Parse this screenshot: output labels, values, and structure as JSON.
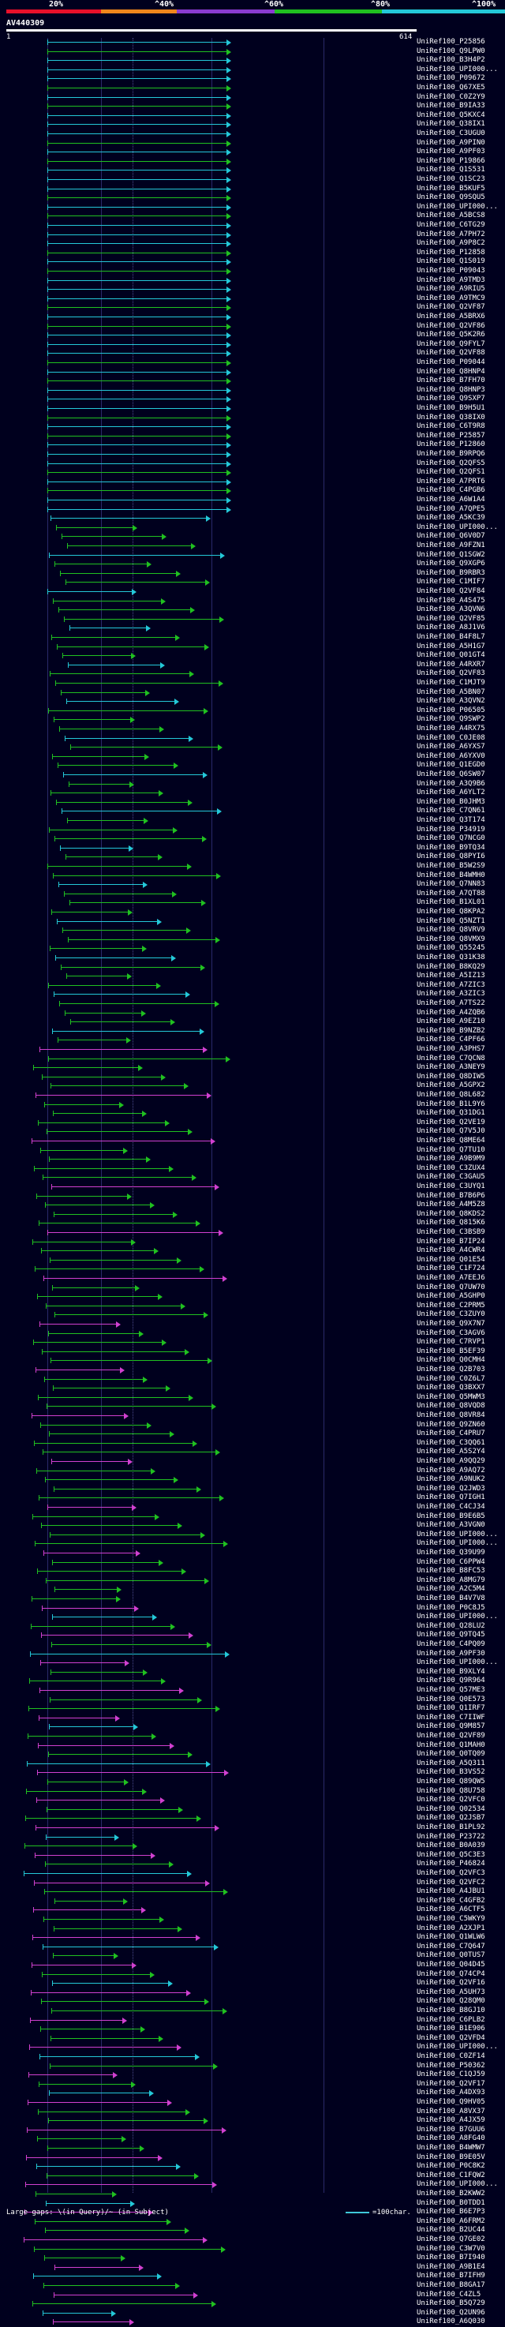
{
  "header": {
    "percent_labels": [
      "20%",
      "^40%",
      "^60%",
      "^80%",
      "^100%"
    ],
    "colors": [
      "#e8102a",
      "#f0861c",
      "#8a3cd0",
      "#20c020",
      "#24c8d8"
    ]
  },
  "query": {
    "id": "AV440309",
    "ruler_start": "1",
    "ruler_end": "614"
  },
  "hits": [
    "UniRef100_P25856",
    "UniRef100_Q9LPW0",
    "UniRef100_B3H4P2",
    "UniRef100_UPI000...",
    "UniRef100_P09672",
    "UniRef100_Q67XE5",
    "UniRef100_C0Z2Y9",
    "UniRef100_B9IA33",
    "UniRef100_Q5KXC4",
    "UniRef100_Q38IX1",
    "UniRef100_C3UGU0",
    "UniRef100_A9PIN0",
    "UniRef100_A9PF03",
    "UniRef100_P19866",
    "UniRef100_Q1S531",
    "UniRef100_Q1SC23",
    "UniRef100_B5KUF5",
    "UniRef100_Q9SQU5",
    "UniRef100_UPI000...",
    "UniRef100_A5BCS8",
    "UniRef100_C6TG29",
    "UniRef100_A7PH72",
    "UniRef100_A9P8C2",
    "UniRef100_P12858",
    "UniRef100_Q1S019",
    "UniRef100_P09043",
    "UniRef100_A9TMD3",
    "UniRef100_A9RIU5",
    "UniRef100_A9TMC9",
    "UniRef100_Q2VF87",
    "UniRef100_A5BRX6",
    "UniRef100_Q2VF86",
    "UniRef100_Q5K2R6",
    "UniRef100_Q9FYL7",
    "UniRef100_Q2VF88",
    "UniRef100_P09044",
    "UniRef100_Q8HNP4",
    "UniRef100_B7FH70",
    "UniRef100_Q8HNP3",
    "UniRef100_Q9SXP7",
    "UniRef100_B9H5U1",
    "UniRef100_Q38IX0",
    "UniRef100_C6T9R8",
    "UniRef100_P25857",
    "UniRef100_P12860",
    "UniRef100_B9RPQ6",
    "UniRef100_Q2QFS5",
    "UniRef100_Q2QFS1",
    "UniRef100_A7PRT6",
    "UniRef100_C4PGB6",
    "UniRef100_A6W1A4",
    "UniRef100_A7QPE5",
    "UniRef100_A5KC39",
    "UniRef100_UPI000...",
    "UniRef100_Q6V0D7",
    "UniRef100_A9FZN1",
    "UniRef100_Q1SGW2",
    "UniRef100_Q9XGP6",
    "UniRef100_B9RBR3",
    "UniRef100_C1MIF7",
    "UniRef100_Q2VF84",
    "UniRef100_A4S475",
    "UniRef100_A3QVN6",
    "UniRef100_Q2VF85",
    "UniRef100_A8J1V6",
    "UniRef100_B4F8L7",
    "UniRef100_A5H1G7",
    "UniRef100_Q01GT4",
    "UniRef100_A4RXR7",
    "UniRef100_Q2VF83",
    "UniRef100_C1MJT9",
    "UniRef100_A5BN07",
    "UniRef100_A3QVN2",
    "UniRef100_P06505",
    "UniRef100_Q9SWP2",
    "UniRef100_A4RX75",
    "UniRef100_C0JE08",
    "UniRef100_A6YXS7",
    "UniRef100_A6YXV0",
    "UniRef100_Q1EGD0",
    "UniRef100_Q6SW07",
    "UniRef100_A3Q9B6",
    "UniRef100_A6YLT2",
    "UniRef100_B0JHM3",
    "UniRef100_C7QN61",
    "UniRef100_Q3T174",
    "UniRef100_P34919",
    "UniRef100_Q7NCG0",
    "UniRef100_B9TQ34",
    "UniRef100_Q8PYI6",
    "UniRef100_B5W2S9",
    "UniRef100_B4WMH0",
    "UniRef100_Q7NN83",
    "UniRef100_A7QT88",
    "UniRef100_B1XL01",
    "UniRef100_Q8KPA2",
    "UniRef100_Q5NZT1",
    "UniRef100_Q8VRV9",
    "UniRef100_Q8VMX9",
    "UniRef100_Q55245",
    "UniRef100_Q31K38",
    "UniRef100_B8KQ29",
    "UniRef100_A5IZ13",
    "UniRef100_A7ZIC3",
    "UniRef100_A3ZIC3",
    "UniRef100_A7TS22",
    "UniRef100_A4ZQB6",
    "UniRef100_A9EZ10",
    "UniRef100_B9NZB2",
    "UniRef100_C4PF66",
    "UniRef100_A3PHS7",
    "UniRef100_C7QCN8",
    "UniRef100_A3NEY9",
    "UniRef100_Q8DIW5",
    "UniRef100_A5GPX2",
    "UniRef100_Q8L682",
    "UniRef100_B1L9Y6",
    "UniRef100_Q31DG1",
    "UniRef100_Q2VE19",
    "UniRef100_Q7V5J0",
    "UniRef100_Q8ME64",
    "UniRef100_Q7TU10",
    "UniRef100_A9B9M9",
    "UniRef100_C3ZUX4",
    "UniRef100_C3GAU5",
    "UniRef100_C3UYQ1",
    "UniRef100_B7B6P6",
    "UniRef100_A4M5Z8",
    "UniRef100_Q8KDS2",
    "UniRef100_Q815K6",
    "UniRef100_C3BSB9",
    "UniRef100_B7IP24",
    "UniRef100_A4CWR4",
    "UniRef100_Q01E54",
    "UniRef100_C1F724",
    "UniRef100_A7EEJ6",
    "UniRef100_Q7UW70",
    "UniRef100_A5GHP0",
    "UniRef100_C2PRM5",
    "UniRef100_C3ZUY0",
    "UniRef100_Q9X7N7",
    "UniRef100_C3AGV6",
    "UniRef100_C7RVP1",
    "UniRef100_B5EF39",
    "UniRef100_Q0CMH4",
    "UniRef100_Q2B703",
    "UniRef100_C0Z6L7",
    "UniRef100_Q3BXX7",
    "UniRef100_Q5MWM3",
    "UniRef100_Q8VQD8",
    "UniRef100_Q8VR84",
    "UniRef100_Q9ZN60",
    "UniRef100_C4PRU7",
    "UniRef100_C3QQ61",
    "UniRef100_A5S2Y4",
    "UniRef100_A9QQ29",
    "UniRef100_A9AQ72",
    "UniRef100_A9NUK2",
    "UniRef100_Q2JWD3",
    "UniRef100_Q7IGH1",
    "UniRef100_C4CJ34",
    "UniRef100_B9E6B5",
    "UniRef100_A3VGN0",
    "UniRef100_UPI000...",
    "UniRef100_UPI000...",
    "UniRef100_Q39U99",
    "UniRef100_C6PPW4",
    "UniRef100_B8FC53",
    "UniRef100_A8MG79",
    "UniRef100_A2C5M4",
    "UniRef100_B4V7V8",
    "UniRef100_P0C8J5",
    "UniRef100_UPI000...",
    "UniRef100_Q28LU2",
    "UniRef100_Q9TQ45",
    "UniRef100_C4PQ09",
    "UniRef100_A9PF30",
    "UniRef100_UPI000...",
    "UniRef100_B9XLY4",
    "UniRef100_Q9R964",
    "UniRef100_Q57ME3",
    "UniRef100_Q0E573",
    "UniRef100_Q1IRF7",
    "UniRef100_C7IIWF",
    "UniRef100_Q9M857",
    "UniRef100_Q2VF89",
    "UniRef100_Q1MAH0",
    "UniRef100_Q0TQ09",
    "UniRef100_A5Q311",
    "UniRef100_B3VS52",
    "UniRef100_Q89QW5",
    "UniRef100_Q8U758",
    "UniRef100_Q2VFC0",
    "UniRef100_Q02534",
    "UniRef100_Q2JSB7",
    "UniRef100_B1PL92",
    "UniRef100_P23722",
    "UniRef100_B0A039",
    "UniRef100_Q5C3E3",
    "UniRef100_P46824",
    "UniRef100_Q2VFC3",
    "UniRef100_Q2VFC2",
    "UniRef100_A4JBU1",
    "UniRef100_C4GFB2",
    "UniRef100_A6CTF5",
    "UniRef100_C5WKY9",
    "UniRef100_A2XJP1",
    "UniRef100_Q1WLW6",
    "UniRef100_C7Q647",
    "UniRef100_Q0TUS7",
    "UniRef100_Q04D45",
    "UniRef100_Q74CP4",
    "UniRef100_Q2VF16",
    "UniRef100_A5UH73",
    "UniRef100_Q28QM0",
    "UniRef100_B8GJ10",
    "UniRef100_C6PLB2",
    "UniRef100_B1E906",
    "UniRef100_Q2VFD4",
    "UniRef100_UPI000...",
    "UniRef100_C0ZF14",
    "UniRef100_P50362",
    "UniRef100_C1QJ59",
    "UniRef100_Q2VF17",
    "UniRef100_A4DX93",
    "UniRef100_Q9HV05",
    "UniRef100_A8VX37",
    "UniRef100_A4JX59",
    "UniRef100_B7GUU6",
    "UniRef100_A8FG40",
    "UniRef100_B4WMW7",
    "UniRef100_B9E05V",
    "UniRef100_P0C8K2",
    "UniRef100_C1FQW2",
    "UniRef100_UPI000...",
    "UniRef100_B2KWW2",
    "UniRef100_B0TDD1",
    "UniRef100_B6E7P3",
    "UniRef100_A6FRM2",
    "UniRef100_B2UC44",
    "UniRef100_Q7GE02",
    "UniRef100_C3W7V0",
    "UniRef100_B7I940",
    "UniRef100_A9B1E4",
    "UniRef100_B7IFH9",
    "UniRef100_B8GA17",
    "UniRef100_C4ZL5",
    "UniRef100_B5Q729",
    "UniRef100_Q2UN96",
    "UniRef100_A6Q030"
  ],
  "footer": {
    "text": "Large gaps: \\(in Query)/~ (in Subject)",
    "legend": "=100char."
  }
}
